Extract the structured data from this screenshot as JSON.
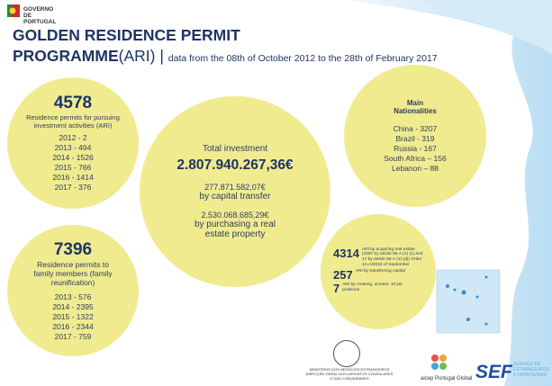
{
  "header": {
    "org": "GOVERNO DE PORTUGAL",
    "title_line1": "GOLDEN RESIDENCE PERMIT",
    "title_bold": "PROGRAMME",
    "title_paren": "(ARI)",
    "separator": "|",
    "subtitle": "data from the 08th of October 2012 to the 28th of February 2017"
  },
  "ari_permits": {
    "total": "4578",
    "label": "Residence permits for pursuing investment activities (ARI)",
    "by_year": [
      "2012 - 2",
      "2013 - 494",
      "2014 - 1526",
      "2015 - 766",
      "2016 - 1414",
      "2017 - 376"
    ]
  },
  "family_permits": {
    "total": "7396",
    "label": "Residence permits to family members (family reunification)",
    "by_year": [
      "2013 - 576",
      "2014 - 2395",
      "2015 - 1322",
      "2016 - 2344",
      "2017 - 759"
    ]
  },
  "investment": {
    "label": "Total investment",
    "total": "2.807.940.267,36€",
    "capital_transfer": {
      "amount": "277.871.582,07€",
      "label": "by capital transfer"
    },
    "real_estate": {
      "amount": "2.530.068.685,29€",
      "label": "by purchasing a real estate property"
    }
  },
  "nationalities": {
    "title": "Main Nationalities",
    "items": [
      "China - 3207",
      "Brazil - 319",
      "Russia - 167",
      "South Africa – 156",
      "Lebanon – 88"
    ]
  },
  "ari_types": [
    {
      "count": "4314",
      "label": "ARI by acquiring real estate (4297 by article 65-A (1) (c) and 17 by article 65-A (1) (d)) Order 1A-A/2015 of September"
    },
    {
      "count": "257",
      "label": "ARI by transferring capital"
    },
    {
      "count": "7",
      "label": "ARI by creating, at least, 10 job positions"
    }
  ],
  "footer": {
    "ministry": "MINISTÉRIO DOS NEGÓCIOS ESTRANGEIROS DIRECÇÃO GERAL DOS ASSUNTOS CONSULARES E DAS COMUNIDADES",
    "aicep": "aicep Portugal Global",
    "sef": "SEF",
    "sef_name": "SERVIÇO DE ESTRANGEIROS E FRONTEIRAS"
  }
}
